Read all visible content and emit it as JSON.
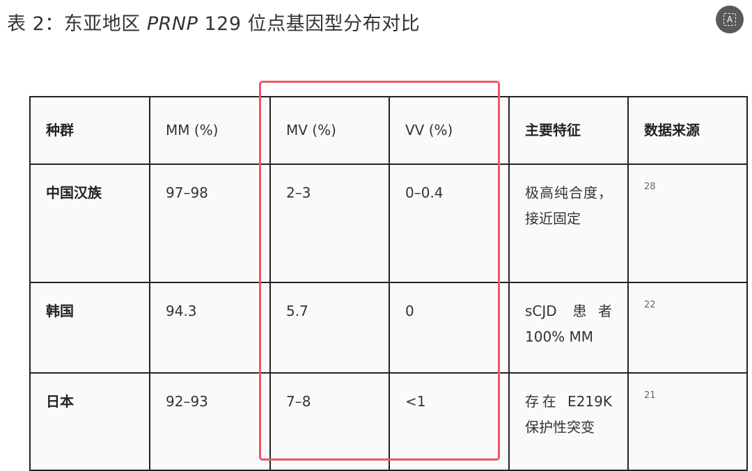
{
  "title": {
    "prefix": "表 2：东亚地区 ",
    "gene": "PRNP",
    "suffix": " 129 位点基因型分布对比"
  },
  "translate_icon": {
    "icon": "text-recognition-icon",
    "glyph": "A"
  },
  "table": {
    "headers": [
      "种群",
      "MM (%)",
      "MV (%)",
      "VV (%)",
      "主要特征",
      "数据来源"
    ],
    "rows": [
      [
        "中国汉族",
        "97–98",
        "2–3",
        "0–0.4",
        "极高纯合度，接近固定",
        "28"
      ],
      [
        "韩国",
        "94.3",
        "5.7",
        "0",
        "sCJD 患者 100% MM",
        "22"
      ],
      [
        "日本",
        "92–93",
        "7–8",
        "<1",
        "存在 E219K 保护性突变",
        "21"
      ]
    ]
  },
  "highlight": {
    "columns": [
      "MV (%)",
      "VV (%)"
    ],
    "color": "#f05565"
  }
}
